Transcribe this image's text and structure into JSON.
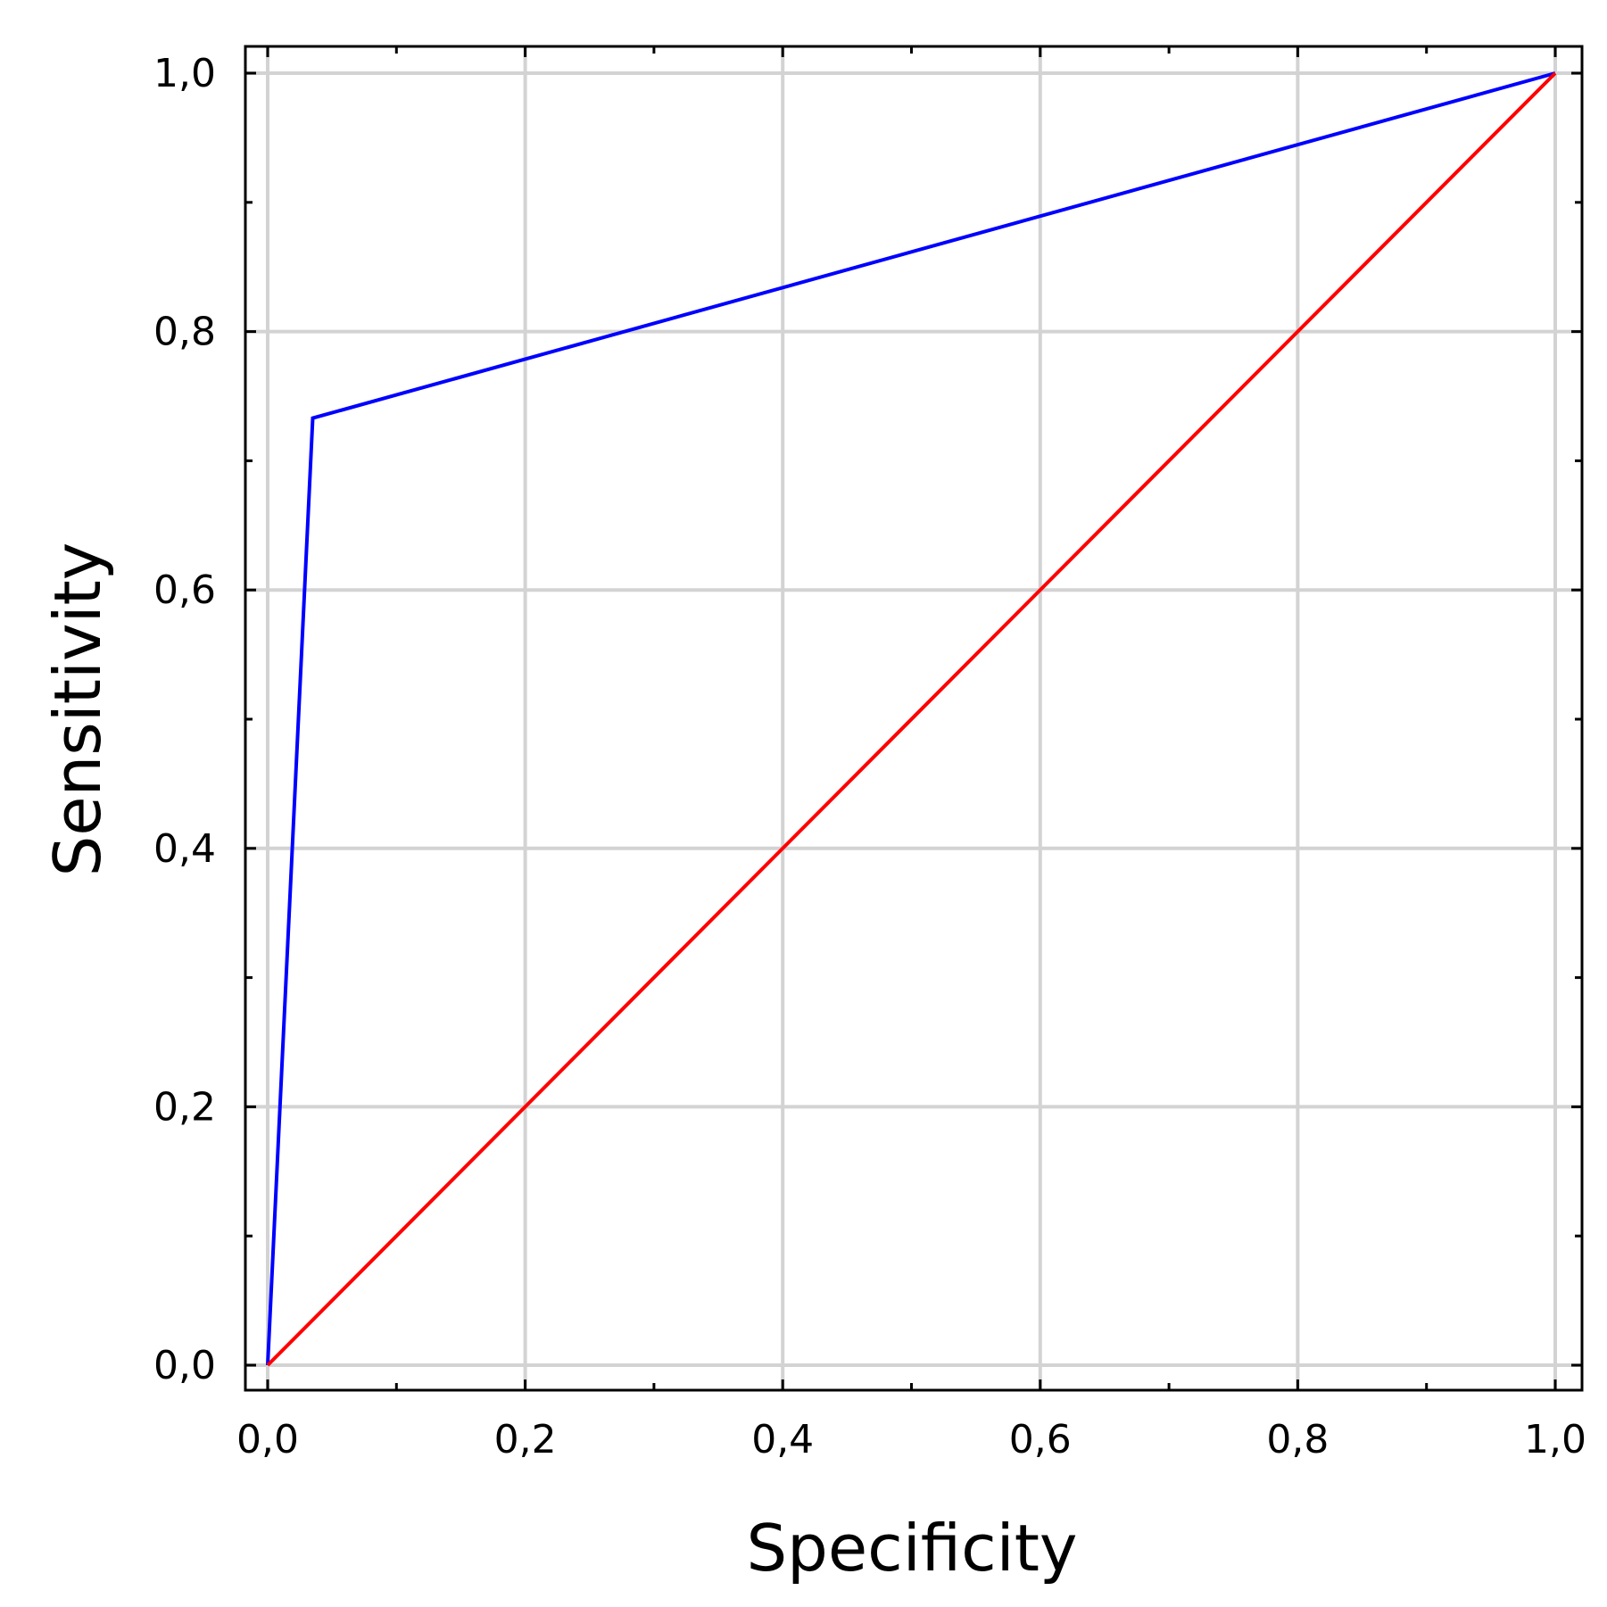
{
  "chart_data": {
    "type": "line",
    "title": "",
    "xlabel": "Specificity",
    "ylabel": "Sensitivity",
    "xlim": [
      0,
      1
    ],
    "ylim": [
      0,
      1
    ],
    "grid": true,
    "legend": "none",
    "x_ticks": [
      0,
      0.2,
      0.4,
      0.6,
      0.8,
      1.0
    ],
    "x_tick_labels": [
      "0,0",
      "0,2",
      "0,4",
      "0,6",
      "0,8",
      "1,0"
    ],
    "y_ticks": [
      0,
      0.2,
      0.4,
      0.6,
      0.8,
      1.0
    ],
    "y_tick_labels": [
      "0,0",
      "0,2",
      "0,4",
      "0,6",
      "0,8",
      "1,0"
    ],
    "minor_ticks": [
      0.1,
      0.3,
      0.5,
      0.7,
      0.9
    ],
    "series": [
      {
        "color": "#0000ff",
        "x": [
          0,
          0.035,
          1.0
        ],
        "y": [
          0,
          0.733,
          1.0
        ]
      },
      {
        "color": "#ff0000",
        "x": [
          0,
          1.0
        ],
        "y": [
          0,
          1.0
        ]
      }
    ],
    "colors": {
      "grid": "#d3d3d3",
      "frame": "#000000"
    }
  }
}
